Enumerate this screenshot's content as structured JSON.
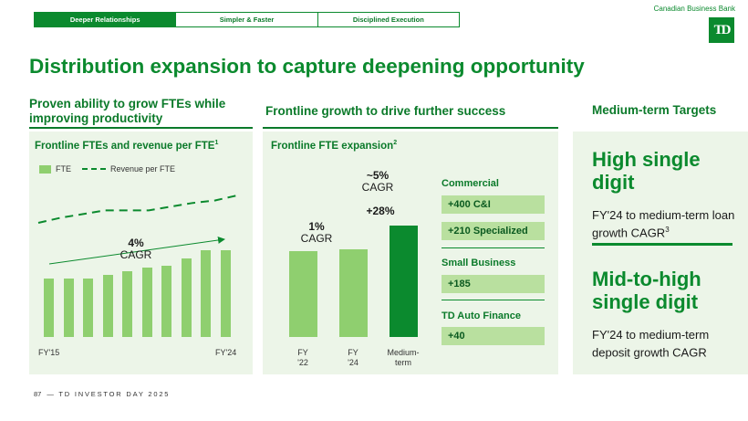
{
  "tabs": [
    {
      "label": "Deeper Relationships",
      "active": true
    },
    {
      "label": "Simpler & Faster",
      "active": false
    },
    {
      "label": "Disciplined Execution",
      "active": false
    }
  ],
  "brand": "Canadian Business Bank",
  "logo_text": "TD",
  "title": "Distribution expansion to capture deepening opportunity",
  "columns": {
    "left_heading": "Proven ability to grow FTEs while improving productivity",
    "middle_heading": "Frontline growth to drive further success",
    "right_heading": "Medium-term Targets"
  },
  "left_chart": {
    "title": "Frontline FTEs and revenue per FTE",
    "title_sup": "1",
    "legend": {
      "fte": "FTE",
      "revenue": "Revenue per FTE"
    },
    "cagr_value": "4%",
    "cagr_label": "CAGR",
    "x_start": "FY'15",
    "x_end": "FY'24"
  },
  "middle_chart": {
    "title": "Frontline FTE expansion",
    "title_sup": "2",
    "cagr1_value": "1%",
    "cagr1_label": "CAGR",
    "cagr2_value": "~5%",
    "cagr2_label": "CAGR",
    "growth": "+28%",
    "x_labels": [
      {
        "l1": "FY",
        "l2": "'22"
      },
      {
        "l1": "FY",
        "l2": "'24"
      },
      {
        "l1": "Medium-",
        "l2": "term"
      }
    ]
  },
  "chart_data": [
    {
      "type": "bar",
      "title": "Frontline FTEs and revenue per FTE",
      "categories": [
        "FY'15",
        "",
        "",
        "",
        "",
        "",
        "",
        "",
        "",
        "FY'24"
      ],
      "series": [
        {
          "name": "FTE",
          "values": [
            56,
            56,
            56,
            59,
            63,
            66,
            68,
            75,
            83,
            83
          ]
        },
        {
          "name": "Revenue per FTE",
          "values": [
            78,
            82,
            85,
            88,
            88,
            88,
            91,
            94,
            96,
            100
          ]
        }
      ],
      "ylim": [
        0,
        100
      ]
    },
    {
      "type": "bar",
      "title": "Frontline FTE expansion",
      "categories": [
        "FY '22",
        "FY '24",
        "Medium-term"
      ],
      "values": [
        100,
        102,
        130
      ],
      "ylim": [
        0,
        130
      ]
    }
  ],
  "segments": [
    {
      "name": "Commercial",
      "items": [
        "+400 C&I",
        "+210 Specialized"
      ]
    },
    {
      "name": "Small Business",
      "items": [
        "+185"
      ]
    },
    {
      "name": "TD Auto Finance",
      "items": [
        "+40"
      ]
    }
  ],
  "targets": [
    {
      "big": "High single digit",
      "small": "FY'24 to medium-term loan growth CAGR",
      "sup": "3"
    },
    {
      "big": "Mid-to-high single digit",
      "small": "FY'24 to medium-term deposit growth CAGR",
      "sup": ""
    }
  ],
  "footer": {
    "page": "87",
    "text": "— TD INVESTOR DAY 2025"
  }
}
